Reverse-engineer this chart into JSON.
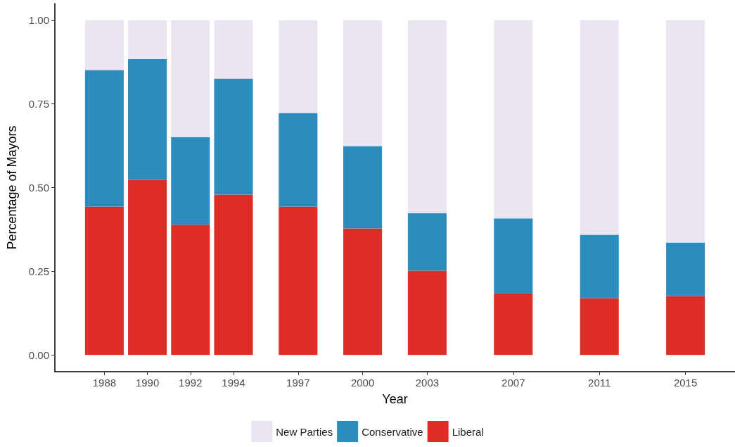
{
  "chart_data": {
    "type": "bar",
    "stacked": true,
    "xlabel": "Year",
    "ylabel": "Percentage of Mayors",
    "x": [
      1988,
      1990,
      1992,
      1994,
      1997,
      2000,
      2003,
      2007,
      2011,
      2015
    ],
    "xlim": [
      1985.7,
      2017.3
    ],
    "xticks": [
      1988,
      1990,
      1992,
      1994,
      1997,
      2000,
      2003,
      2007,
      2011,
      2015
    ],
    "ylim": [
      -0.05,
      1.05
    ],
    "yticks": [
      {
        "value": 0,
        "label": "0.00"
      },
      {
        "value": 0.25,
        "label": "0.25"
      },
      {
        "value": 0.5,
        "label": "0.50"
      },
      {
        "value": 0.75,
        "label": "0.75"
      },
      {
        "value": 1,
        "label": "1.00"
      }
    ],
    "series": [
      {
        "name": "Liberal",
        "color": "#de2d26",
        "values": [
          0.443,
          0.523,
          0.389,
          0.479,
          0.443,
          0.378,
          0.252,
          0.185,
          0.17,
          0.176
        ]
      },
      {
        "name": "Conservative",
        "color": "#2b8cbe",
        "values": [
          0.408,
          0.361,
          0.262,
          0.347,
          0.28,
          0.246,
          0.172,
          0.223,
          0.189,
          0.16
        ]
      },
      {
        "name": "New Parties",
        "color": "#ebe5f1",
        "values": [
          0.149,
          0.116,
          0.349,
          0.174,
          0.277,
          0.376,
          0.576,
          0.592,
          0.641,
          0.664
        ]
      }
    ],
    "grid": false,
    "legend": "bottom"
  }
}
